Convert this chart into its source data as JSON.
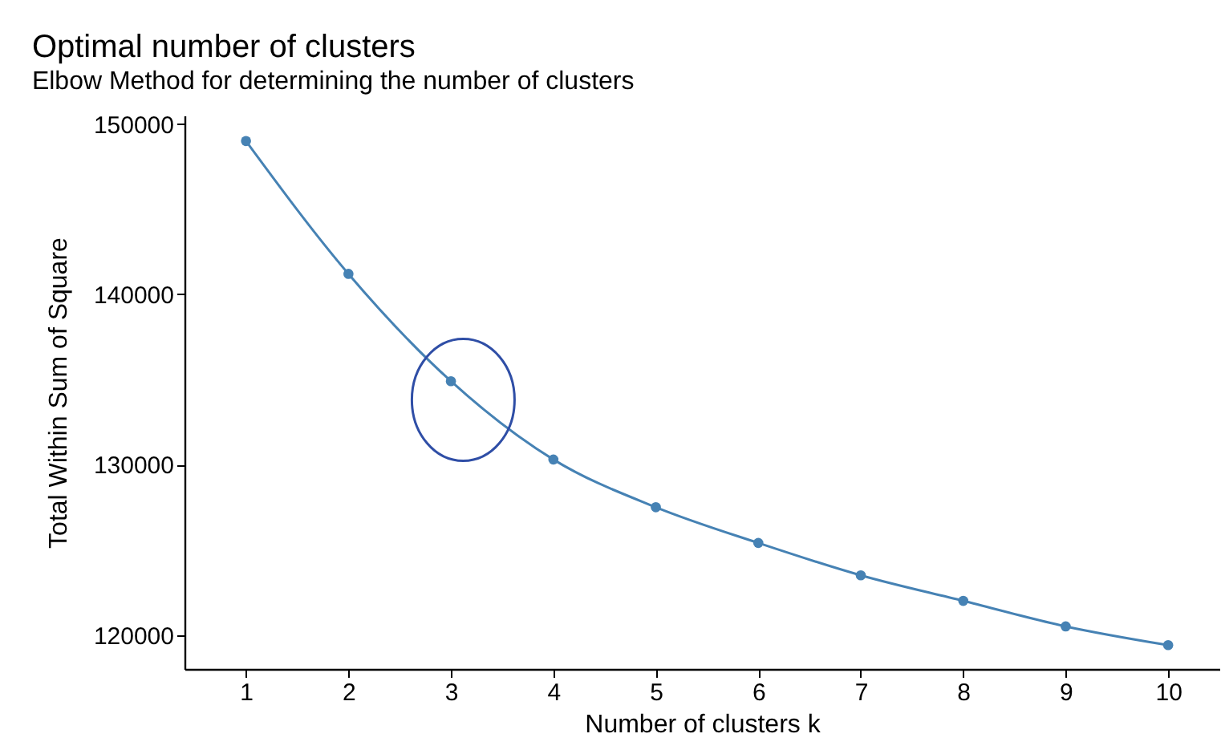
{
  "chart_data": {
    "type": "line",
    "title": "Optimal number of clusters",
    "subtitle": "Elbow Method for determining the number of clusters",
    "xlabel": "Number of clusters k",
    "ylabel": "Total Within Sum of Square",
    "x": [
      1,
      2,
      3,
      4,
      5,
      6,
      7,
      8,
      9,
      10
    ],
    "series": [
      {
        "color": "#4682b4",
        "values": [
          149000,
          141200,
          134900,
          130300,
          127500,
          125400,
          123500,
          122000,
          120500,
          119400
        ]
      }
    ],
    "xlim": [
      0.4,
      10.5
    ],
    "xticks": [
      1,
      2,
      3,
      4,
      5,
      6,
      7,
      8,
      9,
      10
    ],
    "ylim": [
      118000,
      150500
    ],
    "yticks": [
      120000,
      130000,
      140000,
      150000
    ],
    "grid": false,
    "marker": "circle",
    "line_style": "solid"
  }
}
